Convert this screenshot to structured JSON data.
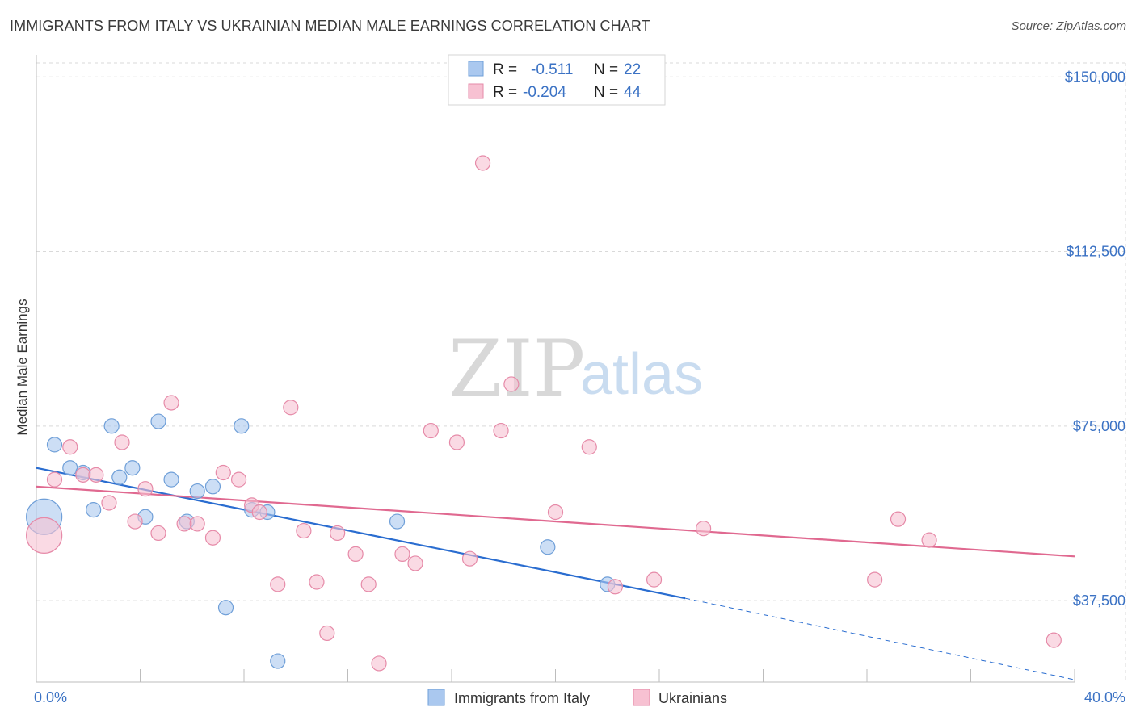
{
  "title": "IMMIGRANTS FROM ITALY VS UKRAINIAN MEDIAN MALE EARNINGS CORRELATION CHART",
  "source": "Source: ZipAtlas.com",
  "watermark": {
    "part1": "ZIP",
    "part2": "atlas"
  },
  "legend_top": {
    "rows": [
      {
        "r_label": "R =",
        "r_value": "-0.511",
        "n_label": "N =",
        "n_value": "22"
      },
      {
        "r_label": "R =",
        "r_value": "-0.204",
        "n_label": "N =",
        "n_value": "44"
      }
    ]
  },
  "legend_bottom": [
    "Immigrants from Italy",
    "Ukrainians"
  ],
  "colors": {
    "italy_fill": "#aac8ef",
    "italy_stroke": "#6f9fd8",
    "italy_line": "#2a6dd0",
    "ukr_fill": "#f7c1d2",
    "ukr_stroke": "#e68aa8",
    "ukr_line": "#e06990",
    "grid": "#d9d9d9",
    "tick_text": "#3b72c4"
  },
  "chart_data": {
    "type": "scatter",
    "ylabel": "Median Male Earnings",
    "xlim": [
      0,
      40
    ],
    "ylim": [
      20000,
      153000
    ],
    "x_ticks": [
      "0.0%",
      "40.0%"
    ],
    "y_ticks": [
      {
        "value": 37500,
        "label": "$37,500"
      },
      {
        "value": 75000,
        "label": "$75,000"
      },
      {
        "value": 112500,
        "label": "$112,500"
      },
      {
        "value": 150000,
        "label": "$150,000"
      }
    ],
    "series": [
      {
        "name": "Immigrants from Italy",
        "points": [
          {
            "x": 0.3,
            "y": 55500,
            "big": true
          },
          {
            "x": 0.7,
            "y": 71000
          },
          {
            "x": 1.3,
            "y": 66000
          },
          {
            "x": 1.8,
            "y": 65000
          },
          {
            "x": 2.2,
            "y": 57000
          },
          {
            "x": 2.9,
            "y": 75000
          },
          {
            "x": 3.2,
            "y": 64000
          },
          {
            "x": 3.7,
            "y": 66000
          },
          {
            "x": 4.2,
            "y": 55500
          },
          {
            "x": 4.7,
            "y": 76000
          },
          {
            "x": 5.2,
            "y": 63500
          },
          {
            "x": 5.8,
            "y": 54500
          },
          {
            "x": 6.2,
            "y": 61000
          },
          {
            "x": 6.8,
            "y": 62000
          },
          {
            "x": 7.3,
            "y": 36000
          },
          {
            "x": 7.9,
            "y": 75000
          },
          {
            "x": 8.3,
            "y": 57000
          },
          {
            "x": 8.9,
            "y": 56500
          },
          {
            "x": 9.3,
            "y": 24500
          },
          {
            "x": 13.9,
            "y": 54500
          },
          {
            "x": 19.7,
            "y": 49000
          },
          {
            "x": 22.0,
            "y": 41000
          }
        ],
        "trend": {
          "x0": 0,
          "y0": 66000,
          "x1": 25.0,
          "y1": 38000,
          "dash_x1": 40,
          "dash_y1": 20500
        }
      },
      {
        "name": "Ukrainians",
        "points": [
          {
            "x": 0.3,
            "y": 51500,
            "big": true
          },
          {
            "x": 0.7,
            "y": 63500
          },
          {
            "x": 1.3,
            "y": 70500
          },
          {
            "x": 1.8,
            "y": 64500
          },
          {
            "x": 2.3,
            "y": 64500
          },
          {
            "x": 2.8,
            "y": 58500
          },
          {
            "x": 3.3,
            "y": 71500
          },
          {
            "x": 3.8,
            "y": 54500
          },
          {
            "x": 4.2,
            "y": 61500
          },
          {
            "x": 4.7,
            "y": 52000
          },
          {
            "x": 5.2,
            "y": 80000
          },
          {
            "x": 5.7,
            "y": 54000
          },
          {
            "x": 6.2,
            "y": 54000
          },
          {
            "x": 6.8,
            "y": 51000
          },
          {
            "x": 7.2,
            "y": 65000
          },
          {
            "x": 7.8,
            "y": 63500
          },
          {
            "x": 8.3,
            "y": 58000
          },
          {
            "x": 8.6,
            "y": 56500
          },
          {
            "x": 9.3,
            "y": 41000
          },
          {
            "x": 9.8,
            "y": 79000
          },
          {
            "x": 10.3,
            "y": 52500
          },
          {
            "x": 10.8,
            "y": 41500
          },
          {
            "x": 11.2,
            "y": 30500
          },
          {
            "x": 11.6,
            "y": 52000
          },
          {
            "x": 12.3,
            "y": 47500
          },
          {
            "x": 12.8,
            "y": 41000
          },
          {
            "x": 13.2,
            "y": 24000
          },
          {
            "x": 14.1,
            "y": 47500
          },
          {
            "x": 14.6,
            "y": 45500
          },
          {
            "x": 15.2,
            "y": 74000
          },
          {
            "x": 16.2,
            "y": 71500
          },
          {
            "x": 16.7,
            "y": 46500
          },
          {
            "x": 17.2,
            "y": 131500
          },
          {
            "x": 17.9,
            "y": 74000
          },
          {
            "x": 18.3,
            "y": 84000
          },
          {
            "x": 20.0,
            "y": 56500
          },
          {
            "x": 21.3,
            "y": 70500
          },
          {
            "x": 22.3,
            "y": 40500
          },
          {
            "x": 23.8,
            "y": 42000
          },
          {
            "x": 25.7,
            "y": 53000
          },
          {
            "x": 32.3,
            "y": 42000
          },
          {
            "x": 33.2,
            "y": 55000
          },
          {
            "x": 34.4,
            "y": 50500
          },
          {
            "x": 39.2,
            "y": 29000
          }
        ],
        "trend": {
          "x0": 0,
          "y0": 62000,
          "x1": 40,
          "y1": 47000
        }
      }
    ]
  }
}
